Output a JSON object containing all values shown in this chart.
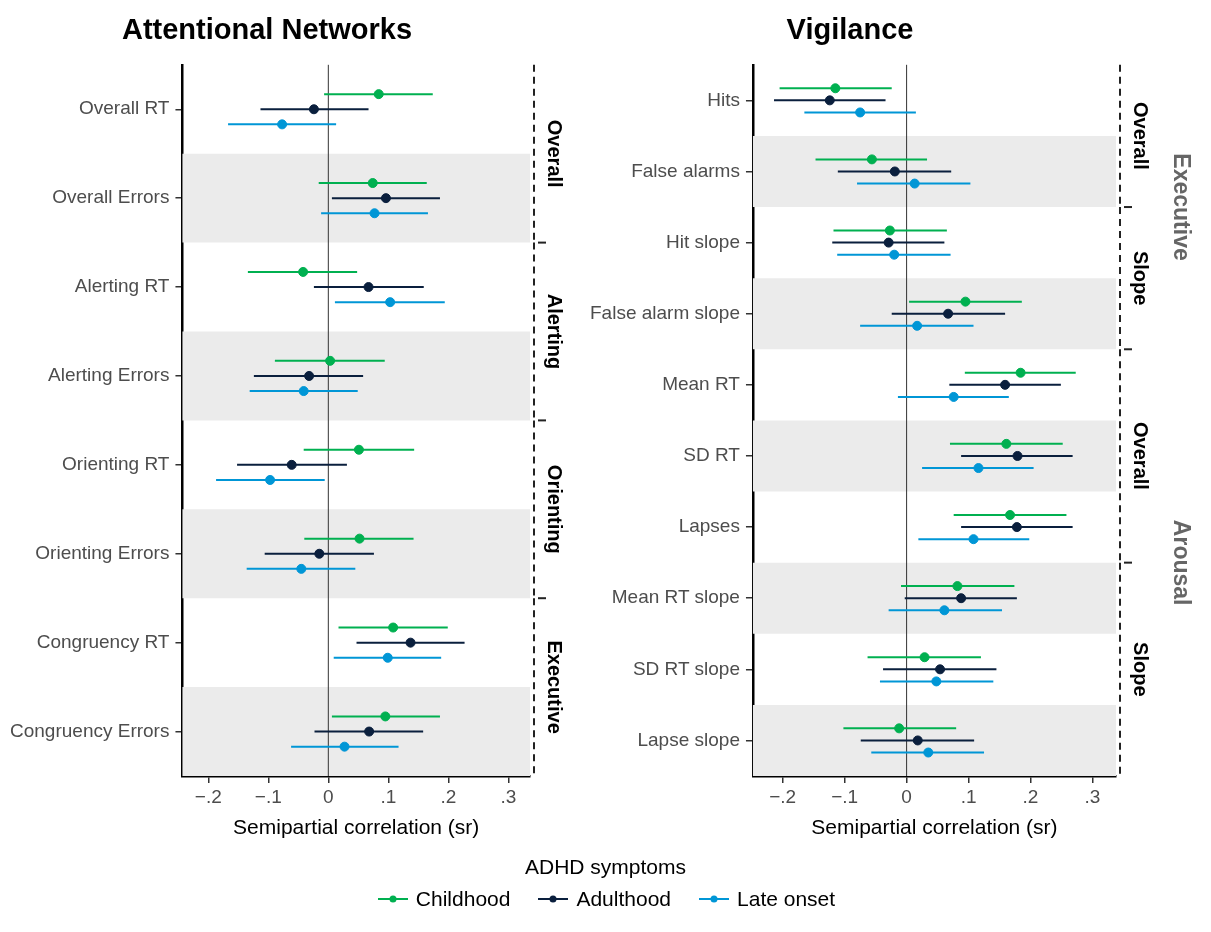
{
  "chart_data": [
    {
      "type": "scatter",
      "title": "Attentional Networks",
      "xlabel": "Semipartial correlation (sr)",
      "orientation": "horizontal",
      "legend": "bottom",
      "legend_title": "ADHD symptoms",
      "marker": "circle",
      "categories": [
        "Overall RT",
        "Overall Errors",
        "Alerting RT",
        "Alerting Errors",
        "Orienting RT",
        "Orienting Errors",
        "Congruency RT",
        "Congruency Errors"
      ],
      "xlim": [
        -0.243,
        0.336
      ],
      "xticks": [
        {
          "value": -0.2,
          "label": "−.2"
        },
        {
          "value": -0.1,
          "label": "−.1"
        },
        0,
        {
          "value": 0.1,
          "label": ".1"
        },
        {
          "value": 0.2,
          "label": ".2"
        },
        {
          "value": 0.3,
          "label": ".3"
        }
      ],
      "ref_lines": [
        {
          "axis": "x",
          "value": 0,
          "color": "#333333"
        }
      ],
      "bands": [
        {
          "axis": "y",
          "from": "Overall Errors",
          "to": "Overall Errors",
          "color": "#ebebeb"
        },
        {
          "axis": "y",
          "from": "Alerting Errors",
          "to": "Alerting Errors",
          "color": "#ebebeb"
        },
        {
          "axis": "y",
          "from": "Orienting Errors",
          "to": "Orienting Errors",
          "color": "#ebebeb"
        },
        {
          "axis": "y",
          "from": "Congruency Errors",
          "to": "Congruency Errors",
          "color": "#ebebeb"
        }
      ],
      "annotations": [
        "Overall",
        "Alerting",
        "Orienting",
        "Executive"
      ],
      "series": [
        {
          "name": "Childhood",
          "color": "#00b050",
          "values": [
            0.084,
            0.074,
            -0.042,
            0.003,
            0.051,
            0.052,
            0.108,
            0.095
          ],
          "errors": [
            [
              -0.007,
              0.174
            ],
            [
              -0.016,
              0.164
            ],
            [
              -0.134,
              0.048
            ],
            [
              -0.089,
              0.094
            ],
            [
              -0.041,
              0.143
            ],
            [
              -0.04,
              0.142
            ],
            [
              0.017,
              0.199
            ],
            [
              0.006,
              0.186
            ]
          ]
        },
        {
          "name": "Adulthood",
          "color": "#0a1f3d",
          "values": [
            -0.024,
            0.096,
            0.067,
            -0.032,
            -0.061,
            -0.015,
            0.137,
            0.068
          ],
          "errors": [
            [
              -0.113,
              0.067
            ],
            [
              0.006,
              0.186
            ],
            [
              -0.024,
              0.159
            ],
            [
              -0.124,
              0.058
            ],
            [
              -0.152,
              0.031
            ],
            [
              -0.106,
              0.076
            ],
            [
              0.047,
              0.227
            ],
            [
              -0.023,
              0.158
            ]
          ]
        },
        {
          "name": "Late onset",
          "color": "#0096d6",
          "values": [
            -0.077,
            0.077,
            0.103,
            -0.041,
            -0.097,
            -0.045,
            0.099,
            0.027
          ],
          "errors": [
            [
              -0.167,
              0.013
            ],
            [
              -0.012,
              0.166
            ],
            [
              0.011,
              0.194
            ],
            [
              -0.131,
              0.049
            ],
            [
              -0.187,
              -0.006
            ],
            [
              -0.136,
              0.045
            ],
            [
              0.009,
              0.188
            ],
            [
              -0.062,
              0.117
            ]
          ]
        }
      ]
    },
    {
      "type": "scatter",
      "title": "Vigilance",
      "xlabel": "Semipartial correlation (sr)",
      "orientation": "horizontal",
      "marker": "circle",
      "categories": [
        "Hits",
        "False alarms",
        "Hit slope",
        "False alarm slope",
        "Mean RT",
        "SD RT",
        "Lapses",
        "Mean RT slope",
        "SD RT slope",
        "Lapse slope"
      ],
      "xlim": [
        -0.248,
        0.338
      ],
      "xticks": [
        {
          "value": -0.2,
          "label": "−.2"
        },
        {
          "value": -0.1,
          "label": "−.1"
        },
        0,
        {
          "value": 0.1,
          "label": ".1"
        },
        {
          "value": 0.2,
          "label": ".2"
        },
        {
          "value": 0.3,
          "label": ".3"
        }
      ],
      "ref_lines": [
        {
          "axis": "x",
          "value": 0,
          "color": "#333333"
        }
      ],
      "bands": [
        {
          "axis": "y",
          "from": "False alarms",
          "to": "False alarms",
          "color": "#ebebeb"
        },
        {
          "axis": "y",
          "from": "False alarm slope",
          "to": "False alarm slope",
          "color": "#ebebeb"
        },
        {
          "axis": "y",
          "from": "SD RT",
          "to": "SD RT",
          "color": "#ebebeb"
        },
        {
          "axis": "y",
          "from": "Mean RT slope",
          "to": "Mean RT slope",
          "color": "#ebebeb"
        },
        {
          "axis": "y",
          "from": "Lapse slope",
          "to": "Lapse slope",
          "color": "#ebebeb"
        }
      ],
      "annotations": [
        "Overall",
        "Slope",
        "Overall",
        "Slope",
        "Executive",
        "Arousal"
      ],
      "series": [
        {
          "color": "#00b050",
          "values": [
            -0.115,
            -0.056,
            -0.027,
            0.095,
            0.184,
            0.161,
            0.167,
            0.082,
            0.029,
            -0.012
          ],
          "errors": [
            [
              -0.205,
              -0.024
            ],
            [
              -0.147,
              0.033
            ],
            [
              -0.118,
              0.065
            ],
            [
              0.004,
              0.186
            ],
            [
              0.094,
              0.273
            ],
            [
              0.07,
              0.252
            ],
            [
              0.076,
              0.258
            ],
            [
              -0.009,
              0.174
            ],
            [
              -0.063,
              0.12
            ],
            [
              -0.102,
              0.08
            ]
          ]
        },
        {
          "color": "#0a1f3d",
          "values": [
            -0.124,
            -0.019,
            -0.029,
            0.067,
            0.159,
            0.179,
            0.178,
            0.088,
            0.054,
            0.018
          ],
          "errors": [
            [
              -0.214,
              -0.034
            ],
            [
              -0.111,
              0.072
            ],
            [
              -0.12,
              0.061
            ],
            [
              -0.024,
              0.159
            ],
            [
              0.069,
              0.249
            ],
            [
              0.088,
              0.268
            ],
            [
              0.088,
              0.268
            ],
            [
              -0.003,
              0.178
            ],
            [
              -0.038,
              0.145
            ],
            [
              -0.074,
              0.109
            ]
          ]
        },
        {
          "color": "#0096d6",
          "values": [
            -0.075,
            0.013,
            -0.02,
            0.017,
            0.076,
            0.116,
            0.108,
            0.061,
            0.048,
            0.035
          ],
          "errors": [
            [
              -0.165,
              0.015
            ],
            [
              -0.08,
              0.103
            ],
            [
              -0.112,
              0.071
            ],
            [
              -0.075,
              0.108
            ],
            [
              -0.014,
              0.165
            ],
            [
              0.025,
              0.205
            ],
            [
              0.019,
              0.198
            ],
            [
              -0.029,
              0.154
            ],
            [
              -0.043,
              0.14
            ],
            [
              -0.057,
              0.125
            ]
          ]
        }
      ]
    }
  ]
}
